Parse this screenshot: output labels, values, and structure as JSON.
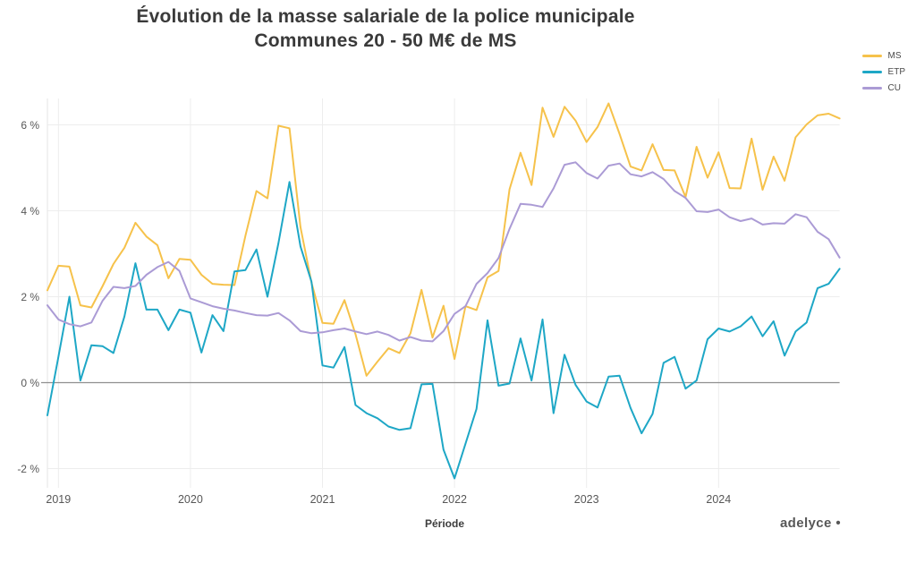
{
  "title": {
    "line1": "Évolution de la masse salariale de la police municipale",
    "line2": "Communes 20 - 50 M€ de MS"
  },
  "branding": "adelyce •",
  "chart_data": {
    "type": "line",
    "title": "Évolution de la masse salariale de la police municipale — Communes 20 - 50 M€ de MS",
    "xlabel": "Période",
    "ylabel": "",
    "x_frequency": "monthly",
    "x_start": "2018-12",
    "x_end": "2024-12",
    "x_tick_labels": [
      "2019",
      "2020",
      "2021",
      "2022",
      "2023",
      "2024"
    ],
    "x_tick_month_indices": [
      1,
      13,
      25,
      37,
      49,
      61
    ],
    "y_tick_values": [
      6,
      4,
      2,
      0,
      -2
    ],
    "y_tick_labels": [
      "6 %",
      "4 %",
      "2 %",
      "0 %",
      "-2 %"
    ],
    "ylim": [
      -2.45,
      6.9
    ],
    "grid": true,
    "zero_line": true,
    "legend_position": "top-right",
    "colors": {
      "grid": "#ededed",
      "zero_line": "#8f8f8f",
      "axis_line": "#e6e6e6",
      "tick_text": "#575757",
      "title_text": "#3a3a3a"
    },
    "series": [
      {
        "name": "MS",
        "color": "#f6c24b",
        "unit": "%",
        "values": [
          2.15,
          2.72,
          2.7,
          1.8,
          1.75,
          2.24,
          2.76,
          3.14,
          3.72,
          3.4,
          3.2,
          2.43,
          2.88,
          2.86,
          2.51,
          2.3,
          2.28,
          2.27,
          3.42,
          4.46,
          4.29,
          5.98,
          5.92,
          3.62,
          2.33,
          1.39,
          1.37,
          1.92,
          1.13,
          0.16,
          0.49,
          0.8,
          0.69,
          1.15,
          2.16,
          1.05,
          1.79,
          0.55,
          1.78,
          1.69,
          2.45,
          2.6,
          4.5,
          5.35,
          4.6,
          6.4,
          5.72,
          6.42,
          6.1,
          5.6,
          5.95,
          6.5,
          5.79,
          5.03,
          4.94,
          5.55,
          4.95,
          4.94,
          4.32,
          5.49,
          4.77,
          5.36,
          4.53,
          4.52,
          5.68,
          4.49,
          5.26,
          4.7,
          5.71,
          6.01,
          6.22,
          6.26,
          6.15
        ]
      },
      {
        "name": "ETP",
        "color": "#1ea7c6",
        "unit": "%",
        "values": [
          -0.76,
          0.6,
          2.0,
          0.05,
          0.87,
          0.85,
          0.69,
          1.54,
          2.78,
          1.7,
          1.7,
          1.22,
          1.7,
          1.63,
          0.7,
          1.57,
          1.2,
          2.59,
          2.62,
          3.1,
          2.0,
          3.25,
          4.67,
          3.17,
          2.35,
          0.4,
          0.35,
          0.83,
          -0.52,
          -0.71,
          -0.83,
          -1.02,
          -1.1,
          -1.06,
          -0.04,
          -0.03,
          -1.56,
          -2.23,
          -1.42,
          -0.61,
          1.45,
          -0.07,
          -0.02,
          1.03,
          0.05,
          1.47,
          -0.71,
          0.65,
          -0.05,
          -0.44,
          -0.58,
          0.14,
          0.16,
          -0.59,
          -1.18,
          -0.73,
          0.46,
          0.6,
          -0.14,
          0.05,
          1.01,
          1.26,
          1.19,
          1.31,
          1.54,
          1.08,
          1.43,
          0.63,
          1.19,
          1.4,
          2.2,
          2.3,
          2.65
        ]
      },
      {
        "name": "CU",
        "color": "#ab9bd5",
        "unit": "%",
        "values": [
          1.8,
          1.47,
          1.36,
          1.31,
          1.4,
          1.9,
          2.23,
          2.2,
          2.25,
          2.51,
          2.69,
          2.81,
          2.6,
          1.96,
          1.87,
          1.78,
          1.72,
          1.68,
          1.62,
          1.57,
          1.56,
          1.62,
          1.45,
          1.2,
          1.15,
          1.17,
          1.22,
          1.26,
          1.19,
          1.13,
          1.19,
          1.11,
          0.98,
          1.06,
          0.98,
          0.96,
          1.2,
          1.6,
          1.78,
          2.3,
          2.55,
          2.9,
          3.58,
          4.16,
          4.14,
          4.09,
          4.52,
          5.07,
          5.13,
          4.88,
          4.75,
          5.05,
          5.1,
          4.85,
          4.8,
          4.9,
          4.74,
          4.46,
          4.3,
          3.99,
          3.97,
          4.03,
          3.85,
          3.76,
          3.82,
          3.68,
          3.71,
          3.7,
          3.92,
          3.85,
          3.51,
          3.34,
          2.91
        ]
      }
    ]
  }
}
